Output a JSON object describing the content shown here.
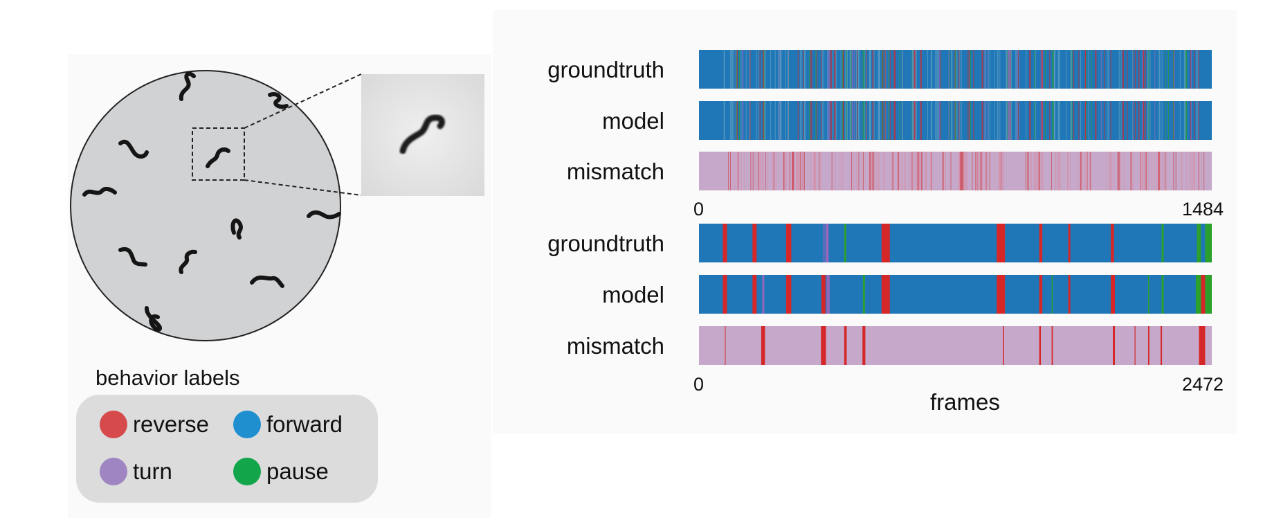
{
  "legend": {
    "title": "behavior labels",
    "items": [
      {
        "label": "reverse",
        "color": "#d64a4b"
      },
      {
        "label": "forward",
        "color": "#1f8fd0"
      },
      {
        "label": "turn",
        "color": "#9f86c3"
      },
      {
        "label": "pause",
        "color": "#12a54a"
      }
    ]
  },
  "colors": {
    "forward": "#2077b8",
    "reverse": "#d62728",
    "turn": "#9467bd",
    "pause": "#2ca02c",
    "mismatch_bg": "#c6a9ca",
    "mismatch_mark": "#d62728"
  },
  "chart_data": [
    {
      "type": "timeline",
      "xlim": [
        0,
        1484
      ],
      "tick_labels": [
        "0",
        "1484"
      ],
      "tracks": [
        {
          "label": "groundtruth"
        },
        {
          "label": "model"
        },
        {
          "label": "mismatch"
        }
      ]
    },
    {
      "type": "timeline",
      "xlim": [
        0,
        2472
      ],
      "xlabel": "frames",
      "tick_labels": [
        "0",
        "2472"
      ],
      "tracks": [
        {
          "label": "groundtruth",
          "events": [
            [
              115,
              135,
              "reverse"
            ],
            [
              258,
              278,
              "reverse"
            ],
            [
              420,
              445,
              "reverse"
            ],
            [
              600,
              605,
              "turn"
            ],
            [
              610,
              625,
              "turn"
            ],
            [
              700,
              710,
              "pause"
            ],
            [
              880,
              920,
              "reverse"
            ],
            [
              1435,
              1475,
              "reverse"
            ],
            [
              1640,
              1655,
              "reverse"
            ],
            [
              1780,
              1790,
              "reverse"
            ],
            [
              1985,
              2000,
              "reverse"
            ],
            [
              2230,
              2240,
              "pause"
            ],
            [
              2400,
              2420,
              "pause"
            ],
            [
              2440,
              2472,
              "pause"
            ]
          ]
        },
        {
          "label": "model",
          "events": [
            [
              115,
              135,
              "reverse"
            ],
            [
              258,
              278,
              "reverse"
            ],
            [
              305,
              315,
              "turn"
            ],
            [
              420,
              445,
              "reverse"
            ],
            [
              590,
              610,
              "reverse"
            ],
            [
              615,
              630,
              "turn"
            ],
            [
              790,
              800,
              "pause"
            ],
            [
              880,
              920,
              "reverse"
            ],
            [
              1435,
              1475,
              "reverse"
            ],
            [
              1640,
              1655,
              "reverse"
            ],
            [
              1700,
              1705,
              "pause"
            ],
            [
              1780,
              1790,
              "reverse"
            ],
            [
              1985,
              2005,
              "reverse"
            ],
            [
              2165,
              2170,
              "pause"
            ],
            [
              2230,
              2240,
              "pause"
            ],
            [
              2395,
              2420,
              "pause"
            ],
            [
              2420,
              2440,
              "reverse"
            ],
            [
              2440,
              2472,
              "pause"
            ]
          ]
        },
        {
          "label": "mismatch",
          "events": [
            [
              125,
              128,
              "mismatch"
            ],
            [
              300,
              318,
              "mismatch"
            ],
            [
              588,
              612,
              "mismatch"
            ],
            [
              700,
              712,
              "mismatch"
            ],
            [
              788,
              802,
              "mismatch"
            ],
            [
              1465,
              1470,
              "mismatch"
            ],
            [
              1640,
              1648,
              "mismatch"
            ],
            [
              1700,
              1706,
              "mismatch"
            ],
            [
              1995,
              2005,
              "mismatch"
            ],
            [
              2100,
              2104,
              "mismatch"
            ],
            [
              2165,
              2171,
              "mismatch"
            ],
            [
              2225,
              2232,
              "mismatch"
            ],
            [
              2410,
              2440,
              "mismatch"
            ]
          ]
        }
      ]
    }
  ]
}
